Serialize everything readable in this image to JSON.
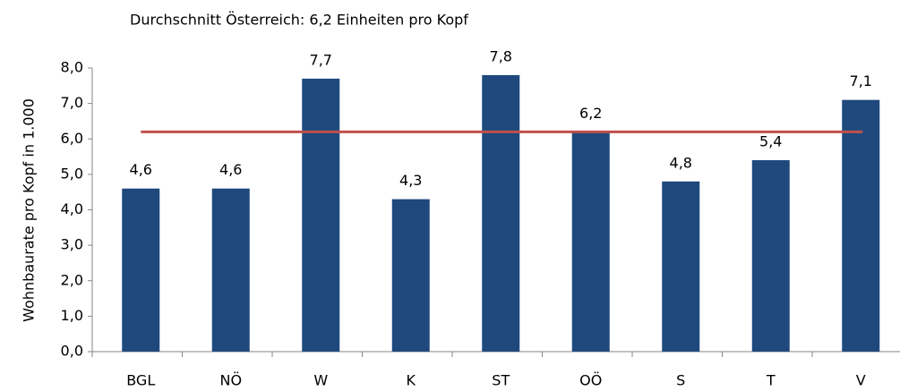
{
  "chart_data": {
    "type": "bar",
    "title": "Durchschnitt Österreich: 6,2 Einheiten pro Kopf",
    "y_axis_label": "Wohnbaurate pro Kopf in 1.000",
    "categories": [
      "BGL",
      "NÖ",
      "W",
      "K",
      "ST",
      "OÖ",
      "S",
      "T",
      "V"
    ],
    "values": [
      4.6,
      4.6,
      7.7,
      4.3,
      7.8,
      6.2,
      4.8,
      5.4,
      7.1
    ],
    "value_labels": [
      "4,6",
      "4,6",
      "7,7",
      "4,3",
      "7,8",
      "6,2",
      "4,8",
      "5,4",
      "7,1"
    ],
    "color": "#1f497d",
    "reference_line": {
      "value": 6.2,
      "color": "#c0504d"
    },
    "ylim": [
      0,
      8
    ],
    "yticks": [
      {
        "value": 0,
        "label": "0,0"
      },
      {
        "value": 1,
        "label": "1,0"
      },
      {
        "value": 2,
        "label": "2,0"
      },
      {
        "value": 3,
        "label": "3,0"
      },
      {
        "value": 4,
        "label": "4,0"
      },
      {
        "value": 5,
        "label": "5,0"
      },
      {
        "value": 6,
        "label": "6,0"
      },
      {
        "value": 7,
        "label": "7,0"
      },
      {
        "value": 8,
        "label": "8,0"
      }
    ],
    "grid": false
  }
}
